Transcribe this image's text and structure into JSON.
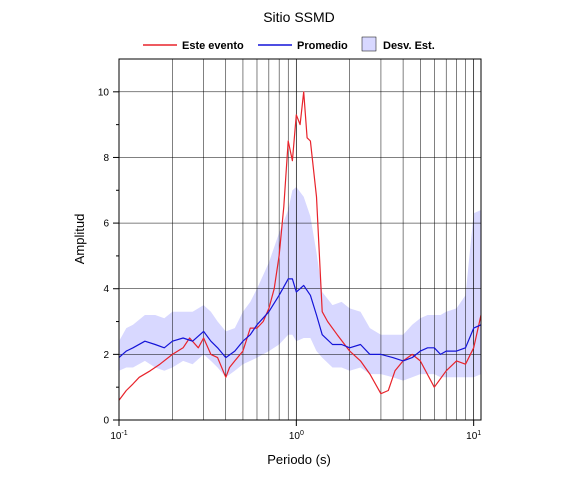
{
  "chart_data": {
    "type": "line",
    "title": "Sitio SSMD",
    "xlabel": "Periodo (s)",
    "ylabel": "Amplitud",
    "xscale": "log",
    "xlim": [
      0.1,
      11
    ],
    "ylim": [
      0,
      11
    ],
    "grid": true,
    "legend_position": "top",
    "x_tick_labels": [
      {
        "value": 0.1,
        "base": "10",
        "exp": "-1"
      },
      {
        "value": 1,
        "base": "10",
        "exp": "0"
      },
      {
        "value": 10,
        "base": "10",
        "exp": "1"
      }
    ],
    "y_ticks": [
      0,
      2,
      4,
      6,
      8,
      10
    ],
    "y_tick_labels": [
      "0",
      "2",
      "4",
      "6",
      "8",
      "10"
    ],
    "series": [
      {
        "name": "Este evento",
        "color": "#e8232b",
        "x": [
          0.1,
          0.11,
          0.12,
          0.13,
          0.15,
          0.17,
          0.2,
          0.23,
          0.25,
          0.28,
          0.3,
          0.33,
          0.36,
          0.4,
          0.42,
          0.45,
          0.5,
          0.55,
          0.6,
          0.65,
          0.7,
          0.75,
          0.8,
          0.85,
          0.9,
          0.95,
          1.0,
          1.05,
          1.1,
          1.15,
          1.2,
          1.3,
          1.4,
          1.5,
          1.7,
          2.0,
          2.3,
          2.6,
          3.0,
          3.3,
          3.6,
          4.0,
          4.5,
          5.0,
          6.0,
          7.0,
          8.0,
          9.0,
          10.0,
          11.0
        ],
        "y": [
          0.6,
          0.9,
          1.1,
          1.3,
          1.5,
          1.7,
          2.0,
          2.2,
          2.5,
          2.2,
          2.5,
          2.0,
          1.9,
          1.3,
          1.6,
          1.8,
          2.1,
          2.8,
          2.8,
          3.0,
          3.4,
          4.0,
          5.0,
          6.5,
          8.5,
          7.9,
          9.3,
          9.0,
          10.0,
          8.6,
          8.5,
          6.8,
          3.3,
          3.0,
          2.6,
          2.1,
          1.8,
          1.4,
          0.8,
          0.9,
          1.5,
          1.8,
          2.0,
          1.8,
          1.0,
          1.5,
          1.8,
          1.7,
          2.2,
          3.2
        ]
      },
      {
        "name": "Promedio",
        "color": "#1414d8",
        "x": [
          0.1,
          0.11,
          0.12,
          0.14,
          0.16,
          0.18,
          0.2,
          0.23,
          0.26,
          0.3,
          0.33,
          0.36,
          0.4,
          0.45,
          0.5,
          0.55,
          0.6,
          0.7,
          0.8,
          0.9,
          0.95,
          1.0,
          1.1,
          1.2,
          1.3,
          1.4,
          1.6,
          1.8,
          2.0,
          2.3,
          2.6,
          3.0,
          3.5,
          4.0,
          4.5,
          5.0,
          5.5,
          6.0,
          6.5,
          7.0,
          8.0,
          9.0,
          10.0,
          11.0
        ],
        "y": [
          1.9,
          2.1,
          2.2,
          2.4,
          2.3,
          2.2,
          2.4,
          2.5,
          2.4,
          2.7,
          2.4,
          2.2,
          1.9,
          2.1,
          2.4,
          2.6,
          2.9,
          3.3,
          3.8,
          4.3,
          4.3,
          3.9,
          4.1,
          3.8,
          3.2,
          2.6,
          2.3,
          2.3,
          2.2,
          2.3,
          2.0,
          2.0,
          1.9,
          1.8,
          1.9,
          2.1,
          2.2,
          2.2,
          2.0,
          2.1,
          2.1,
          2.2,
          2.8,
          2.9
        ]
      }
    ],
    "band": {
      "name": "Desv. Est.",
      "fill": "#d8d8ff",
      "x": [
        0.1,
        0.11,
        0.12,
        0.14,
        0.16,
        0.18,
        0.2,
        0.23,
        0.26,
        0.3,
        0.33,
        0.36,
        0.4,
        0.45,
        0.5,
        0.55,
        0.6,
        0.7,
        0.8,
        0.9,
        0.95,
        1.0,
        1.1,
        1.2,
        1.3,
        1.4,
        1.6,
        1.8,
        2.0,
        2.3,
        2.6,
        3.0,
        3.5,
        4.0,
        4.5,
        5.0,
        5.5,
        6.0,
        6.5,
        7.0,
        8.0,
        9.0,
        10.0,
        11.0
      ],
      "upper": [
        2.4,
        2.8,
        2.9,
        3.2,
        3.2,
        3.1,
        3.3,
        3.3,
        3.3,
        3.5,
        3.3,
        3.0,
        2.7,
        2.8,
        3.3,
        3.6,
        4.0,
        4.8,
        5.7,
        6.4,
        7.0,
        7.1,
        6.8,
        6.2,
        5.1,
        3.9,
        3.5,
        3.6,
        3.4,
        3.3,
        2.8,
        2.6,
        2.6,
        2.6,
        2.9,
        3.1,
        3.2,
        3.2,
        3.2,
        3.3,
        3.4,
        3.8,
        6.3,
        6.4
      ],
      "lower": [
        1.5,
        1.6,
        1.6,
        1.8,
        1.6,
        1.5,
        1.6,
        1.8,
        1.7,
        2.0,
        1.8,
        1.6,
        1.3,
        1.5,
        1.7,
        1.8,
        1.9,
        2.1,
        2.3,
        2.6,
        2.6,
        2.4,
        2.5,
        2.5,
        2.1,
        1.9,
        1.6,
        1.6,
        1.5,
        1.6,
        1.4,
        1.4,
        1.3,
        1.2,
        1.3,
        1.4,
        1.4,
        1.4,
        1.3,
        1.3,
        1.3,
        1.3,
        1.3,
        1.4
      ]
    }
  }
}
